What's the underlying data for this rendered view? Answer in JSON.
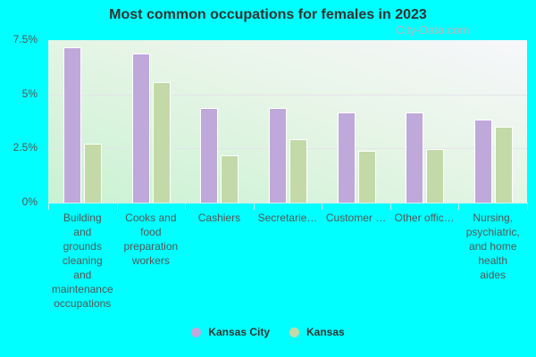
{
  "title": "Most common occupations for females in 2023",
  "watermark": "City-Data.com",
  "y_ticks": [
    "7.5%",
    "5%",
    "2.5%",
    "0%"
  ],
  "legend": [
    {
      "label": "Kansas City",
      "color": "#bfa8da"
    },
    {
      "label": "Kansas",
      "color": "#c4d9a8"
    }
  ],
  "x_labels": [
    "Building\nand\ngrounds\ncleaning\nand\nmaintenance\noccupations",
    "Cooks and\nfood\npreparation\nworkers",
    "Cashiers",
    "Secretarie…",
    "Customer …",
    "Other offic…",
    "Nursing,\npsychiatric,\nand home\nhealth\naides"
  ],
  "chart_data": {
    "type": "bar",
    "title": "Most common occupations for females in 2023",
    "xlabel": "",
    "ylabel": "",
    "ylim": [
      0,
      7.5
    ],
    "y_ticks": [
      0,
      2.5,
      5,
      7.5
    ],
    "y_tick_format": "percent",
    "grid": true,
    "legend_position": "bottom",
    "categories": [
      "Building and grounds cleaning and maintenance occupations",
      "Cooks and food preparation workers",
      "Cashiers",
      "Secretaries",
      "Customer service",
      "Other office",
      "Nursing, psychiatric, and home health aides"
    ],
    "series": [
      {
        "name": "Kansas City",
        "color": "#bfa8da",
        "values": [
          7.15,
          6.86,
          4.32,
          4.32,
          4.13,
          4.13,
          3.8
        ]
      },
      {
        "name": "Kansas",
        "color": "#c4d9a8",
        "values": [
          2.66,
          5.54,
          2.16,
          2.88,
          2.35,
          2.43,
          3.47
        ]
      }
    ]
  }
}
